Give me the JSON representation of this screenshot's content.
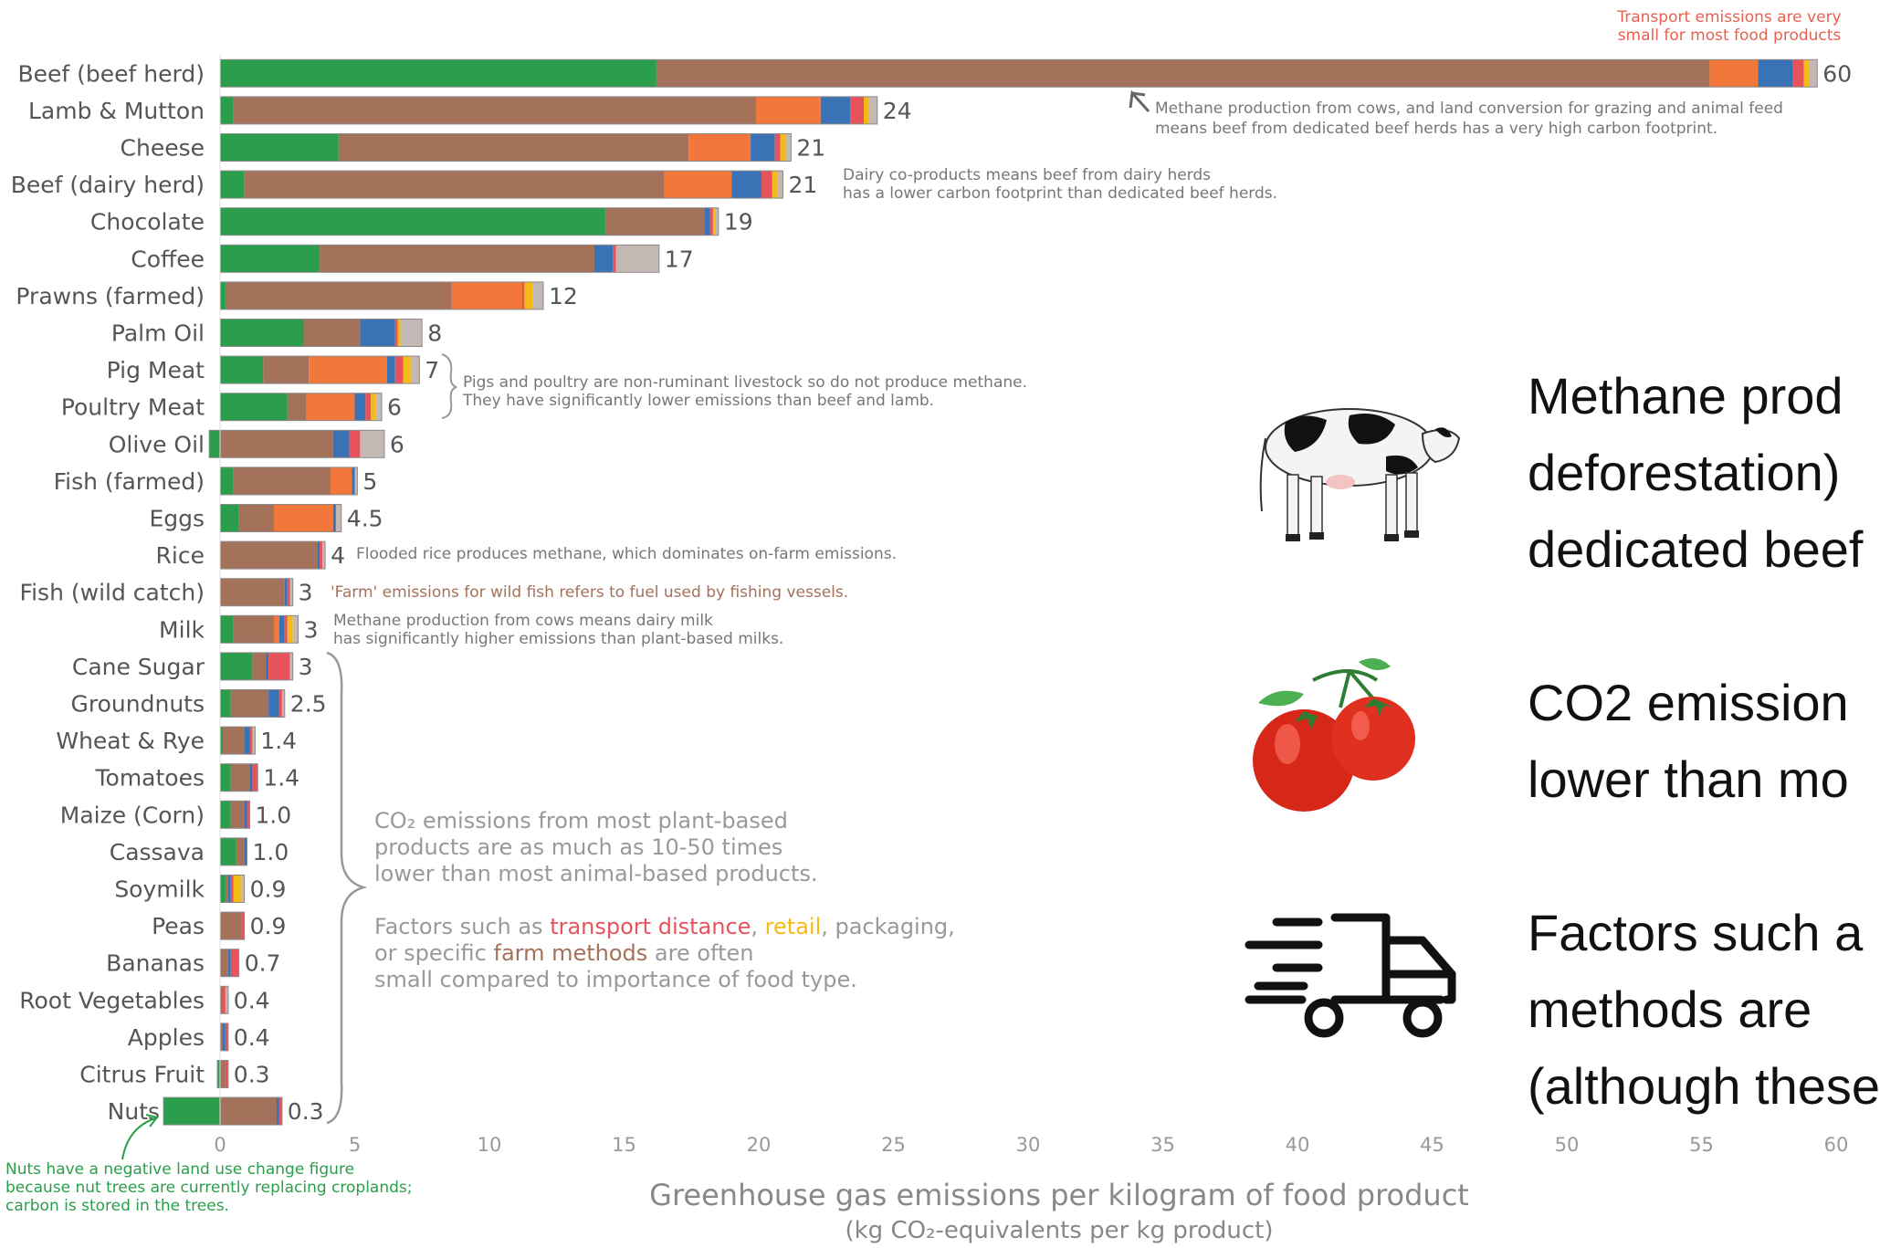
{
  "chart_data": {
    "type": "bar",
    "stacked": true,
    "orientation": "horizontal",
    "categories": [
      "Beef (beef herd)",
      "Lamb & Mutton",
      "Cheese",
      "Beef (dairy herd)",
      "Chocolate",
      "Coffee",
      "Prawns (farmed)",
      "Palm Oil",
      "Pig Meat",
      "Poultry Meat",
      "Olive Oil",
      "Fish (farmed)",
      "Eggs",
      "Rice",
      "Fish (wild catch)",
      "Milk",
      "Cane Sugar",
      "Groundnuts",
      "Wheat & Rye",
      "Tomatoes",
      "Maize (Corn)",
      "Cassava",
      "Soymilk",
      "Peas",
      "Bananas",
      "Root Vegetables",
      "Apples",
      "Citrus Fruit",
      "Nuts"
    ],
    "totals": [
      "60",
      "24",
      "21",
      "21",
      "19",
      "17",
      "12",
      "8",
      "7",
      "6",
      "6",
      "5",
      "4.5",
      "4",
      "3",
      "3",
      "3",
      "2.5",
      "1.4",
      "1.4",
      "1.0",
      "1.0",
      "0.9",
      "0.9",
      "0.7",
      "0.4",
      "0.4",
      "0.3",
      "0.3"
    ],
    "series_colors": [
      "#2a9e4a",
      "#a4715a",
      "#f1783a",
      "#3a73b5",
      "#e8525a",
      "#f2bb17",
      "#c4b8b4"
    ],
    "segments": [
      [
        16.2,
        39.1,
        1.8,
        1.3,
        0.4,
        0.2,
        0.3
      ],
      [
        0.5,
        19.4,
        2.4,
        1.1,
        0.5,
        0.2,
        0.3
      ],
      [
        4.4,
        13.0,
        2.3,
        0.9,
        0.2,
        0.2,
        0.2
      ],
      [
        0.9,
        15.6,
        2.5,
        1.1,
        0.4,
        0.2,
        0.2
      ],
      [
        14.3,
        3.7,
        0.0,
        0.2,
        0.1,
        0.1,
        0.1
      ],
      [
        3.7,
        10.2,
        0.0,
        0.7,
        0.1,
        0.0,
        1.6
      ],
      [
        0.2,
        8.4,
        2.6,
        0.0,
        0.1,
        0.3,
        0.4
      ],
      [
        3.1,
        2.1,
        0.0,
        1.3,
        0.1,
        0.1,
        0.8
      ],
      [
        1.6,
        1.7,
        2.9,
        0.3,
        0.3,
        0.3,
        0.3
      ],
      [
        2.5,
        0.7,
        1.8,
        0.4,
        0.2,
        0.2,
        0.2
      ],
      [
        -0.4,
        4.2,
        0.0,
        0.6,
        0.4,
        0.0,
        0.9
      ],
      [
        0.5,
        3.6,
        0.8,
        0.1,
        0.0,
        0.0,
        0.1
      ],
      [
        0.7,
        1.3,
        2.2,
        0.1,
        0.0,
        0.0,
        0.2
      ],
      [
        0.0,
        3.6,
        0.0,
        0.1,
        0.1,
        0.0,
        0.1
      ],
      [
        0.0,
        2.4,
        0.0,
        0.1,
        0.1,
        0.0,
        0.1
      ],
      [
        0.5,
        1.5,
        0.2,
        0.2,
        0.1,
        0.2,
        0.2
      ],
      [
        1.2,
        0.5,
        0.0,
        0.1,
        0.8,
        0.0,
        0.1
      ],
      [
        0.4,
        1.4,
        0.0,
        0.4,
        0.1,
        0.0,
        0.1
      ],
      [
        0.1,
        0.8,
        0.0,
        0.2,
        0.1,
        0.0,
        0.1
      ],
      [
        0.4,
        0.7,
        0.0,
        0.1,
        0.2,
        0.0,
        0.0
      ],
      [
        0.4,
        0.5,
        0.0,
        0.1,
        0.1,
        0.0,
        0.0
      ],
      [
        0.6,
        0.3,
        0.0,
        0.1,
        0.0,
        0.0,
        0.0
      ],
      [
        0.2,
        0.1,
        0.0,
        0.1,
        0.1,
        0.3,
        0.1
      ],
      [
        0.0,
        0.8,
        0.0,
        0.0,
        0.1,
        0.0,
        0.0
      ],
      [
        0.0,
        0.3,
        0.0,
        0.1,
        0.3,
        0.0,
        0.0
      ],
      [
        0.0,
        0.1,
        0.0,
        0.0,
        0.1,
        0.0,
        0.1
      ],
      [
        0.0,
        0.1,
        0.0,
        0.1,
        0.1,
        0.0,
        0.0
      ],
      [
        -0.1,
        0.2,
        0.0,
        0.0,
        0.1,
        0.0,
        0.0
      ],
      [
        -2.1,
        2.1,
        0.0,
        0.1,
        0.1,
        0.0,
        0.0
      ]
    ],
    "xlim": [
      -2.5,
      62
    ],
    "x_ticks": [
      0,
      5,
      10,
      15,
      20,
      25,
      30,
      35,
      40,
      45,
      50,
      55,
      60
    ],
    "xlabel": "Greenhouse gas emissions per kilogram of food product",
    "xlabel_sub": "(kg CO₂-equivalents per kg product)",
    "annotations": {
      "transport": "Transport emissions are very small for most food products",
      "beef": "Methane production from cows, and land conversion for grazing and animal feed means beef from dedicated beef herds has a very high carbon footprint.",
      "dairy": "Dairy co-products means beef from dairy herds has a lower carbon footprint than dedicated beef herds.",
      "pigs_1": "Pigs and poultry are non-ruminant livestock so do not produce methane.",
      "pigs_2": "They have significantly lower emissions than beef and lamb.",
      "rice": "Flooded rice produces methane, which dominates on-farm emissions.",
      "fish": "'Farm' emissions for wild fish refers to fuel used by fishing vessels.",
      "milk_1": "Methane production from cows means dairy milk",
      "milk_2": "has significantly higher emissions than plant-based milks.",
      "plant_1": "CO₂ emissions from most plant-based",
      "plant_2": "products are as much as 10-50 times",
      "plant_3": "lower than most animal-based products.",
      "factors_a": "Factors such as ",
      "factors_transport": "transport distance",
      "factors_comma": ", ",
      "factors_retail": "retail",
      "factors_b": ", packaging,",
      "factors_c": "or specific ",
      "factors_farm": "farm methods",
      "factors_d": " are often",
      "factors_e": "small compared to importance of food type.",
      "nuts_1": "Nuts have a negative land use change figure",
      "nuts_2": "because nut trees are currently replacing croplands;",
      "nuts_3": "carbon is stored in the trees."
    }
  },
  "side_panel": {
    "cow_lines": [
      "Methane prod",
      "deforestation)",
      "dedicated beef"
    ],
    "tomato_lines": [
      "CO2  emission",
      "lower than mo"
    ],
    "truck_lines": [
      "Factors such a",
      "methods  are",
      "(although these"
    ],
    "icons": [
      "cow-icon",
      "tomato-icon",
      "truck-icon"
    ]
  }
}
